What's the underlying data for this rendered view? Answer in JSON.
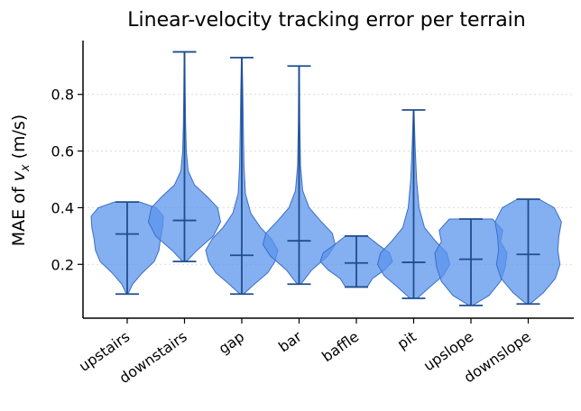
{
  "chart_data": {
    "type": "violin",
    "title": "Linear-velocity tracking error per terrain",
    "ylabel_prefix": "MAE of ",
    "ylabel_var": "v",
    "ylabel_sub": "x",
    "ylabel_suffix": " (m/s)",
    "xlabel": "",
    "ylim": [
      0.01,
      0.99
    ],
    "yticks": [
      0.2,
      0.4,
      0.6,
      0.8
    ],
    "ytick_labels": [
      "0.2",
      "0.4",
      "0.6",
      "0.8"
    ],
    "grid": "y-dotted",
    "colors": {
      "fill": "#5b94ec",
      "fill_opacity": 0.75,
      "edge": "#3b6fc4",
      "lines": "#1f4e8c"
    },
    "categories": [
      "upstairs",
      "downstairs",
      "gap",
      "bar",
      "baffle",
      "pit",
      "upslope",
      "downslope"
    ],
    "series": [
      {
        "category": "upstairs",
        "min": 0.095,
        "max": 0.42,
        "median": 0.307,
        "profile": [
          [
            0.095,
            0.02
          ],
          [
            0.13,
            0.15
          ],
          [
            0.17,
            0.42
          ],
          [
            0.21,
            0.75
          ],
          [
            0.25,
            0.88
          ],
          [
            0.29,
            0.92
          ],
          [
            0.33,
            0.98
          ],
          [
            0.37,
            1.0
          ],
          [
            0.4,
            0.8
          ],
          [
            0.42,
            0.35
          ]
        ]
      },
      {
        "category": "downstairs",
        "min": 0.21,
        "max": 0.95,
        "median": 0.355,
        "profile": [
          [
            0.21,
            0.05
          ],
          [
            0.25,
            0.35
          ],
          [
            0.3,
            0.8
          ],
          [
            0.35,
            1.0
          ],
          [
            0.4,
            0.92
          ],
          [
            0.44,
            0.62
          ],
          [
            0.48,
            0.28
          ],
          [
            0.53,
            0.1
          ],
          [
            0.6,
            0.05
          ],
          [
            0.7,
            0.03
          ],
          [
            0.8,
            0.02
          ],
          [
            0.95,
            0.01
          ]
        ]
      },
      {
        "category": "gap",
        "min": 0.095,
        "max": 0.93,
        "median": 0.232,
        "profile": [
          [
            0.095,
            0.05
          ],
          [
            0.13,
            0.35
          ],
          [
            0.17,
            0.72
          ],
          [
            0.21,
            0.92
          ],
          [
            0.25,
            1.0
          ],
          [
            0.29,
            0.82
          ],
          [
            0.33,
            0.52
          ],
          [
            0.38,
            0.25
          ],
          [
            0.45,
            0.1
          ],
          [
            0.55,
            0.06
          ],
          [
            0.7,
            0.04
          ],
          [
            0.8,
            0.03
          ],
          [
            0.93,
            0.01
          ]
        ]
      },
      {
        "category": "bar",
        "min": 0.13,
        "max": 0.9,
        "median": 0.283,
        "profile": [
          [
            0.13,
            0.05
          ],
          [
            0.18,
            0.35
          ],
          [
            0.23,
            0.8
          ],
          [
            0.27,
            1.0
          ],
          [
            0.31,
            0.92
          ],
          [
            0.35,
            0.62
          ],
          [
            0.4,
            0.28
          ],
          [
            0.46,
            0.1
          ],
          [
            0.55,
            0.04
          ],
          [
            0.7,
            0.02
          ],
          [
            0.9,
            0.01
          ]
        ]
      },
      {
        "category": "baffle",
        "min": 0.12,
        "max": 0.3,
        "median": 0.205,
        "profile": [
          [
            0.12,
            0.3
          ],
          [
            0.15,
            0.45
          ],
          [
            0.18,
            0.78
          ],
          [
            0.21,
            1.0
          ],
          [
            0.24,
            0.92
          ],
          [
            0.27,
            0.6
          ],
          [
            0.3,
            0.3
          ]
        ]
      },
      {
        "category": "pit",
        "min": 0.08,
        "max": 0.745,
        "median": 0.207,
        "profile": [
          [
            0.08,
            0.1
          ],
          [
            0.12,
            0.45
          ],
          [
            0.16,
            0.82
          ],
          [
            0.2,
            1.0
          ],
          [
            0.24,
            0.92
          ],
          [
            0.28,
            0.62
          ],
          [
            0.33,
            0.3
          ],
          [
            0.4,
            0.15
          ],
          [
            0.5,
            0.08
          ],
          [
            0.62,
            0.04
          ],
          [
            0.745,
            0.01
          ]
        ]
      },
      {
        "category": "upslope",
        "min": 0.055,
        "max": 0.36,
        "median": 0.218,
        "profile": [
          [
            0.055,
            0.05
          ],
          [
            0.09,
            0.5
          ],
          [
            0.14,
            0.82
          ],
          [
            0.19,
            0.95
          ],
          [
            0.24,
            1.0
          ],
          [
            0.28,
            0.82
          ],
          [
            0.32,
            0.88
          ],
          [
            0.36,
            0.6
          ]
        ]
      },
      {
        "category": "downslope",
        "min": 0.06,
        "max": 0.43,
        "median": 0.235,
        "profile": [
          [
            0.06,
            0.05
          ],
          [
            0.1,
            0.42
          ],
          [
            0.15,
            0.75
          ],
          [
            0.2,
            0.88
          ],
          [
            0.25,
            0.82
          ],
          [
            0.3,
            0.85
          ],
          [
            0.35,
            0.92
          ],
          [
            0.4,
            0.72
          ],
          [
            0.43,
            0.3
          ]
        ]
      }
    ]
  }
}
